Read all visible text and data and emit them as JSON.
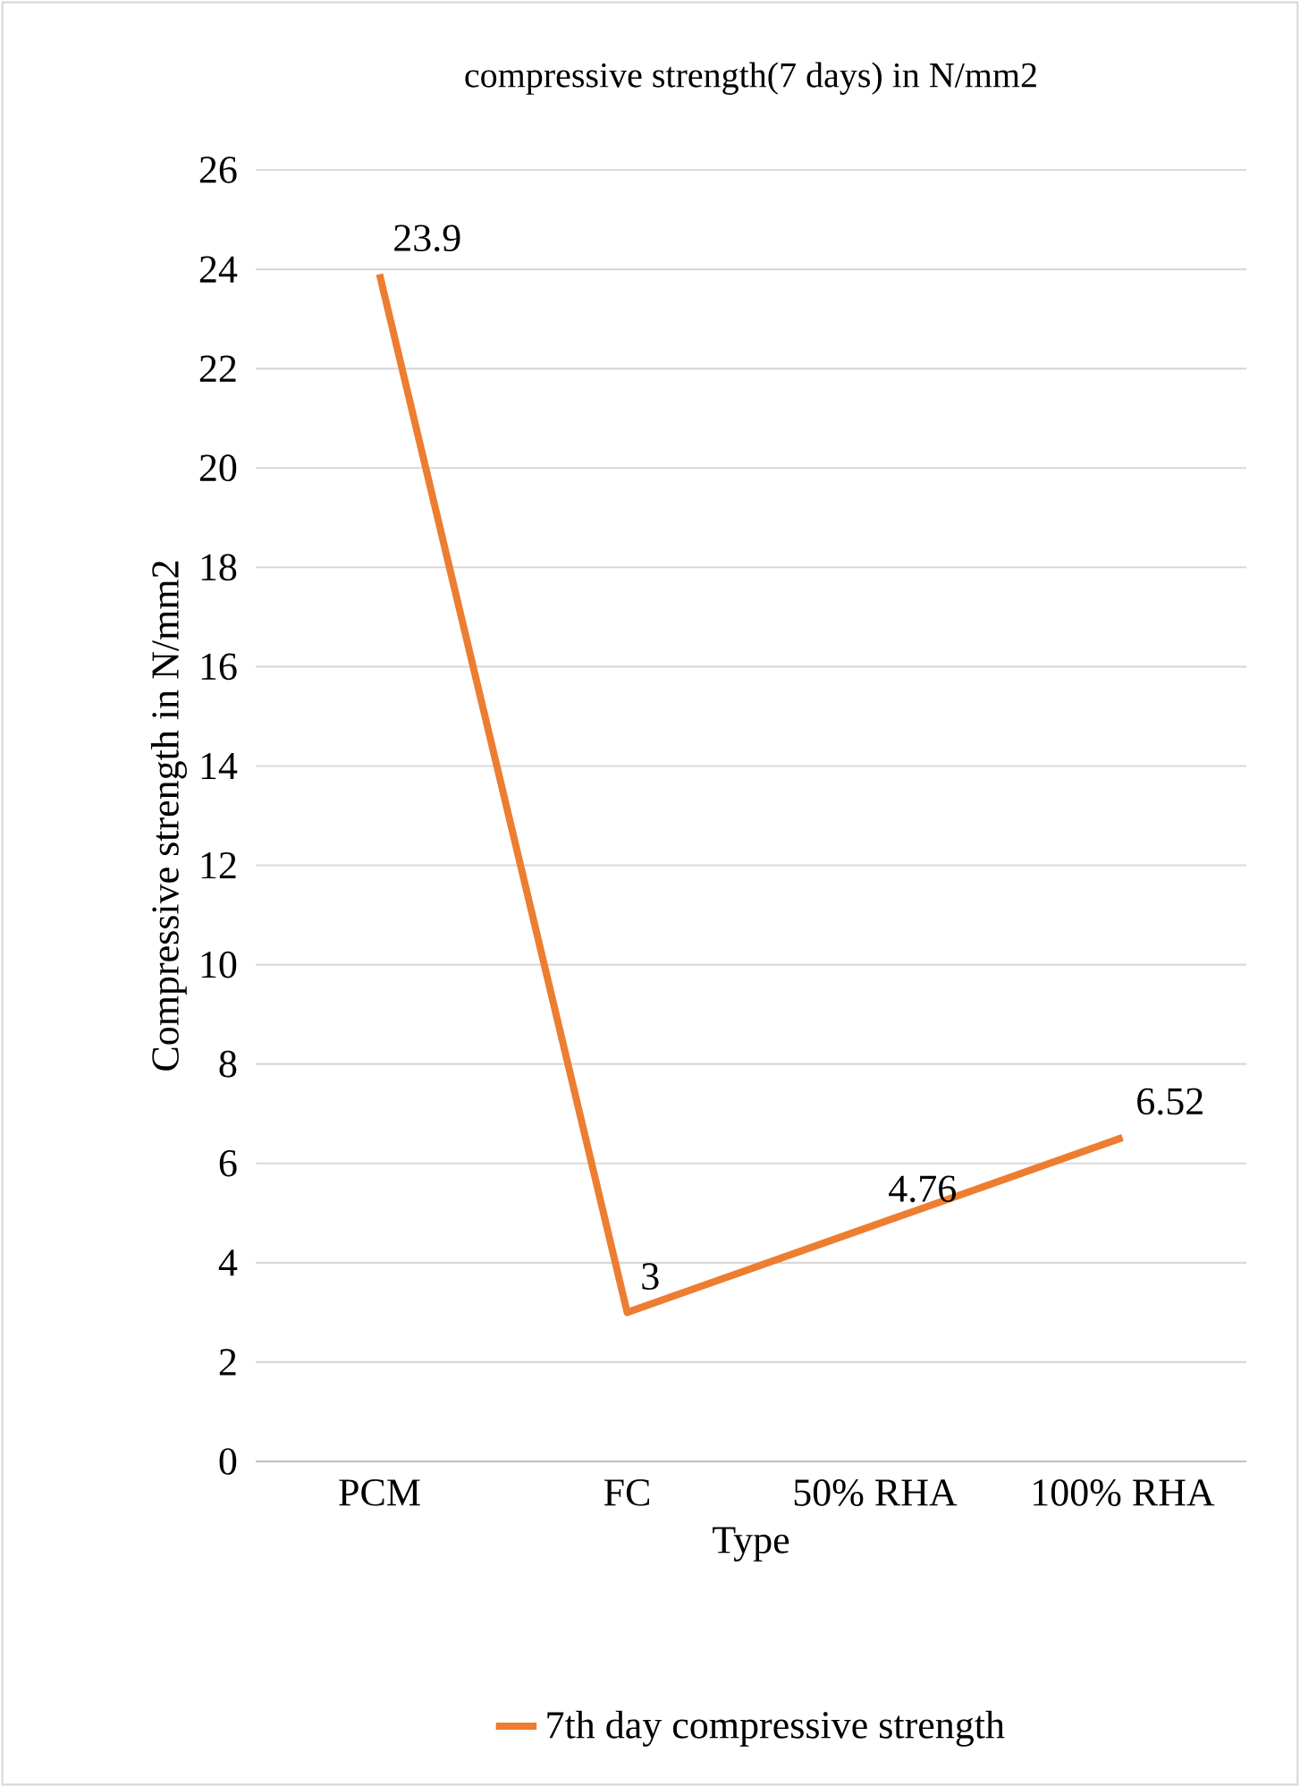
{
  "chart_data": {
    "type": "line",
    "title": "compressive strength(7 days) in N/mm2",
    "xlabel": "Type",
    "ylabel": "Compressive strength in N/mm2",
    "categories": [
      "PCM",
      "FC",
      "50% RHA",
      "100% RHA"
    ],
    "series": [
      {
        "name": "7th day compressive strength",
        "color": "#ed7d31",
        "values": [
          23.9,
          3,
          4.76,
          6.52
        ]
      }
    ],
    "ylim": [
      0,
      26
    ],
    "yticks": [
      0,
      2,
      4,
      6,
      8,
      10,
      12,
      14,
      16,
      18,
      20,
      22,
      24,
      26
    ],
    "grid": "y",
    "legend": "bottom",
    "data_labels": true,
    "marker": "none",
    "line_style": "solid"
  }
}
